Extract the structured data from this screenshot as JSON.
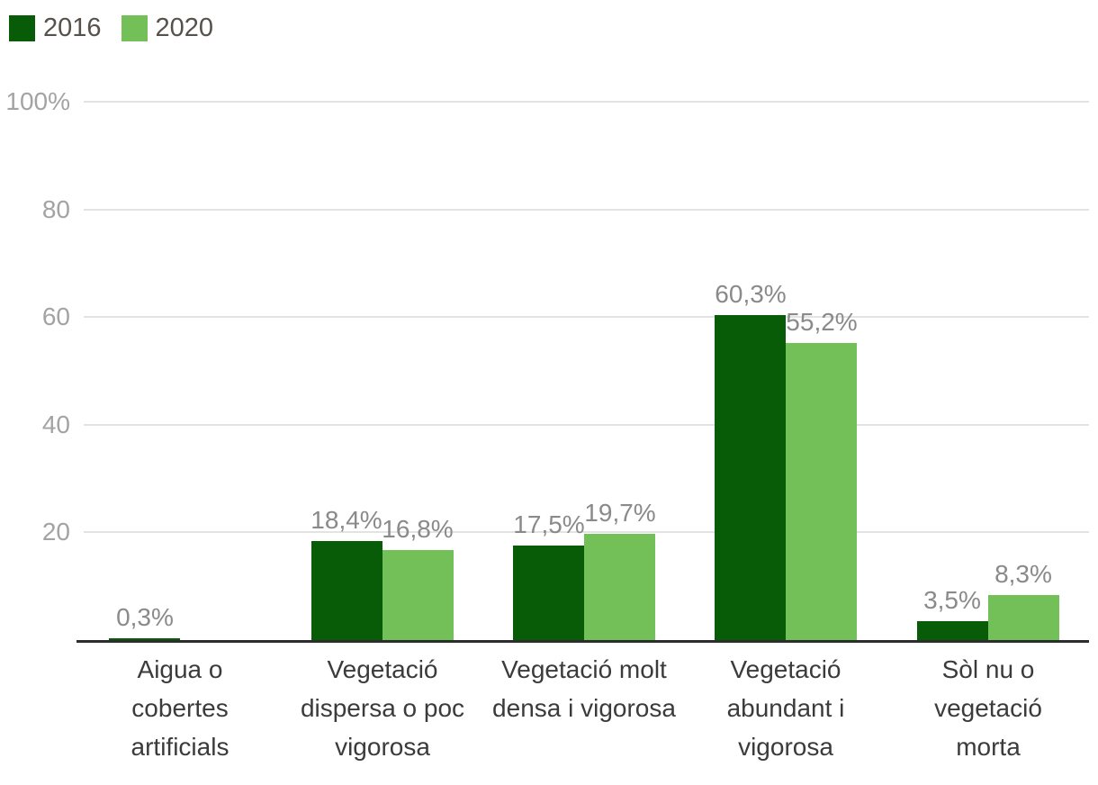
{
  "colors": {
    "series_2016": "#085c08",
    "series_2020": "#74c058",
    "gridline": "#e3e3e3",
    "axis_line": "#2d2d2d",
    "y_tick_label": "#a3a3a3",
    "value_label": "#8a8a8a",
    "category_label": "#3b3b3b",
    "legend_text": "#56514a",
    "background": "#ffffff"
  },
  "legend": {
    "items": [
      {
        "label": "2016",
        "color": "#085c08"
      },
      {
        "label": "2020",
        "color": "#74c058"
      }
    ]
  },
  "chart_data": {
    "type": "bar",
    "grouped": true,
    "number_format": "comma-decimal percent",
    "legend_position": "top-left",
    "categories": [
      "Aigua o cobertes artificials",
      "Vegetació dispersa o poc vigorosa",
      "Vegetació molt densa i vigorosa",
      "Vegetació abundant i vigorosa",
      "Sòl nu o vegetació morta"
    ],
    "category_lines": [
      [
        "Aigua o",
        "cobertes",
        "artificials"
      ],
      [
        "Vegetació",
        "dispersa o poc",
        "vigorosa"
      ],
      [
        "Vegetació molt",
        "densa i vigorosa"
      ],
      [
        "Vegetació",
        "abundant i",
        "vigorosa"
      ],
      [
        "Sòl nu o",
        "vegetació",
        "morta"
      ]
    ],
    "series": [
      {
        "name": "2016",
        "color": "#085c08",
        "values": [
          0.3,
          18.4,
          17.5,
          60.3,
          3.5
        ],
        "value_labels": [
          "0,3%",
          "18,4%",
          "17,5%",
          "60,3%",
          "3,5%"
        ]
      },
      {
        "name": "2020",
        "color": "#74c058",
        "values": [
          0,
          16.8,
          19.7,
          55.2,
          8.3
        ],
        "value_labels": [
          "",
          "16,8%",
          "19,7%",
          "55,2%",
          "8,3%"
        ]
      }
    ],
    "y_axis": {
      "min": 0,
      "max": 100,
      "ticks": [
        20,
        40,
        60,
        80,
        100
      ],
      "tick_labels": [
        "20",
        "40",
        "60",
        "80",
        "100%"
      ],
      "grid": true
    },
    "x_axis": {
      "baseline": true
    }
  }
}
